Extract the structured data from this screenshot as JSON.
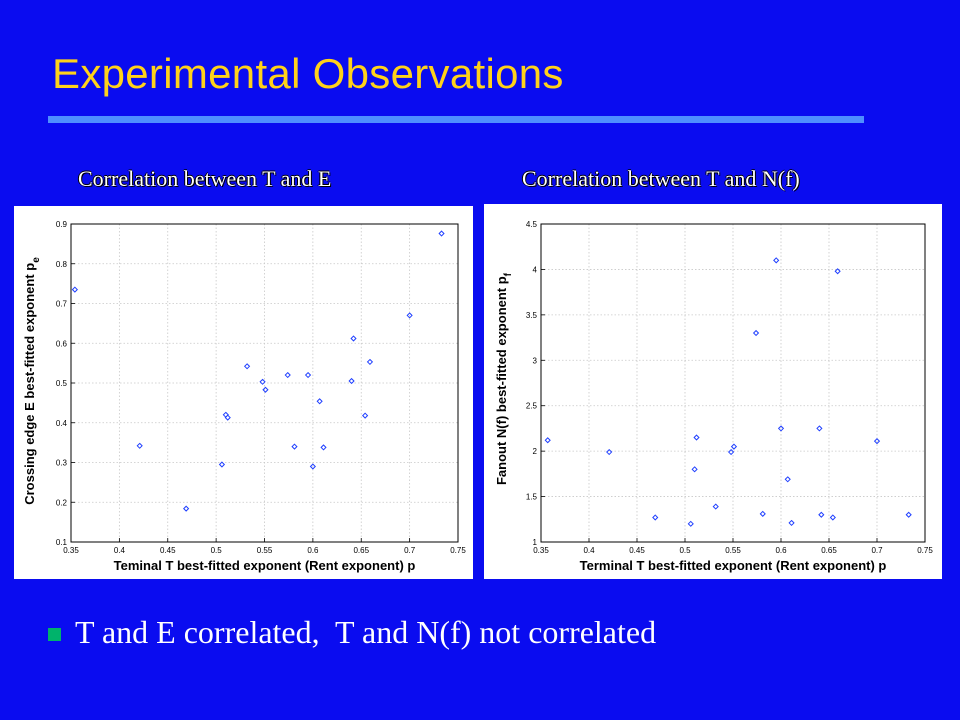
{
  "slide": {
    "title": "Experimental Observations",
    "bullet": "T and E correlated,  T and N(f) not correlated",
    "colors": {
      "background": "#0a0cf0",
      "title": "#ffd21a",
      "rule": "#4f8fff",
      "bullet": "#00b36b",
      "marker": "#1f3fff"
    }
  },
  "chart_data": [
    {
      "type": "scatter",
      "caption": "Correlation between T and E",
      "title": "",
      "xlabel": "Teminal T best-fitted exponent (Rent exponent) p",
      "ylabel_main": "Crossing edge E best-fitted exponent p",
      "ylabel_sub": "e",
      "xlim": [
        0.35,
        0.75
      ],
      "ylim": [
        0.1,
        0.9
      ],
      "xticks": [
        "0.35",
        "0.4",
        "0.45",
        "0.5",
        "0.55",
        "0.6",
        "0.65",
        "0.7",
        "0.75"
      ],
      "yticks": [
        "0.1",
        "0.2",
        "0.3",
        "0.4",
        "0.5",
        "0.6",
        "0.7",
        "0.8",
        "0.9"
      ],
      "grid": true,
      "points": [
        {
          "x": 0.354,
          "y": 0.735
        },
        {
          "x": 0.421,
          "y": 0.342
        },
        {
          "x": 0.469,
          "y": 0.184
        },
        {
          "x": 0.506,
          "y": 0.295
        },
        {
          "x": 0.51,
          "y": 0.42
        },
        {
          "x": 0.512,
          "y": 0.413
        },
        {
          "x": 0.532,
          "y": 0.542
        },
        {
          "x": 0.548,
          "y": 0.503
        },
        {
          "x": 0.551,
          "y": 0.483
        },
        {
          "x": 0.574,
          "y": 0.52
        },
        {
          "x": 0.581,
          "y": 0.34
        },
        {
          "x": 0.595,
          "y": 0.52
        },
        {
          "x": 0.6,
          "y": 0.29
        },
        {
          "x": 0.607,
          "y": 0.454
        },
        {
          "x": 0.611,
          "y": 0.338
        },
        {
          "x": 0.64,
          "y": 0.505
        },
        {
          "x": 0.642,
          "y": 0.612
        },
        {
          "x": 0.654,
          "y": 0.418
        },
        {
          "x": 0.659,
          "y": 0.553
        },
        {
          "x": 0.7,
          "y": 0.67
        },
        {
          "x": 0.733,
          "y": 0.876
        }
      ]
    },
    {
      "type": "scatter",
      "caption": "Correlation between T and N(f)",
      "title": "",
      "xlabel": "Terminal T best-fitted exponent (Rent exponent) p",
      "ylabel_main": "Fanout N(f) best-fitted exponent p",
      "ylabel_sub": "f",
      "xlim": [
        0.35,
        0.75
      ],
      "ylim": [
        1,
        4.5
      ],
      "xticks": [
        "0.35",
        "0.4",
        "0.45",
        "0.5",
        "0.55",
        "0.6",
        "0.65",
        "0.7",
        "0.75"
      ],
      "yticks": [
        "1",
        "1.5",
        "2",
        "2.5",
        "3",
        "3.5",
        "4",
        "4.5"
      ],
      "grid": true,
      "points": [
        {
          "x": 0.357,
          "y": 2.12
        },
        {
          "x": 0.421,
          "y": 1.99
        },
        {
          "x": 0.469,
          "y": 1.27
        },
        {
          "x": 0.506,
          "y": 1.2
        },
        {
          "x": 0.51,
          "y": 1.8
        },
        {
          "x": 0.512,
          "y": 2.15
        },
        {
          "x": 0.532,
          "y": 1.39
        },
        {
          "x": 0.548,
          "y": 1.99
        },
        {
          "x": 0.551,
          "y": 2.05
        },
        {
          "x": 0.574,
          "y": 3.3
        },
        {
          "x": 0.581,
          "y": 1.31
        },
        {
          "x": 0.595,
          "y": 4.1
        },
        {
          "x": 0.6,
          "y": 2.25
        },
        {
          "x": 0.607,
          "y": 1.69
        },
        {
          "x": 0.611,
          "y": 1.21
        },
        {
          "x": 0.64,
          "y": 2.25
        },
        {
          "x": 0.642,
          "y": 1.3
        },
        {
          "x": 0.654,
          "y": 1.27
        },
        {
          "x": 0.659,
          "y": 3.98
        },
        {
          "x": 0.7,
          "y": 2.11
        },
        {
          "x": 0.733,
          "y": 1.3
        }
      ]
    }
  ]
}
